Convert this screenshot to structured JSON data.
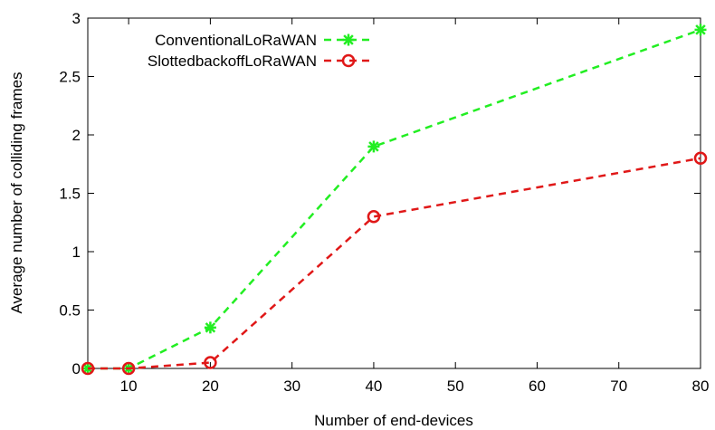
{
  "chart_data": {
    "type": "line",
    "xlabel": "Number of end-devices",
    "ylabel": "Average number of colliding frames",
    "xlim": [
      5,
      80
    ],
    "ylim": [
      0,
      3
    ],
    "xticks": [
      10,
      20,
      30,
      40,
      50,
      60,
      70,
      80
    ],
    "yticks": [
      0,
      0.5,
      1,
      1.5,
      2,
      2.5,
      3
    ],
    "ytick_labels": [
      "0",
      "0.5",
      "1",
      "1.5",
      "2",
      "2.5",
      "3"
    ],
    "grid": false,
    "legend_position": "top-left",
    "series": [
      {
        "name": "ConventionalLoRaWAN",
        "color": "#22ee22",
        "marker": "asterisk",
        "line_style": "dashed",
        "x": [
          5,
          10,
          20,
          40,
          80
        ],
        "y": [
          0,
          0,
          0.35,
          1.9,
          2.9
        ]
      },
      {
        "name": "SlottedbackoffLoRaWAN",
        "color": "#e01818",
        "marker": "circle",
        "line_style": "dashed",
        "x": [
          5,
          10,
          20,
          40,
          80
        ],
        "y": [
          0,
          0,
          0.05,
          1.3,
          1.8
        ]
      }
    ]
  }
}
